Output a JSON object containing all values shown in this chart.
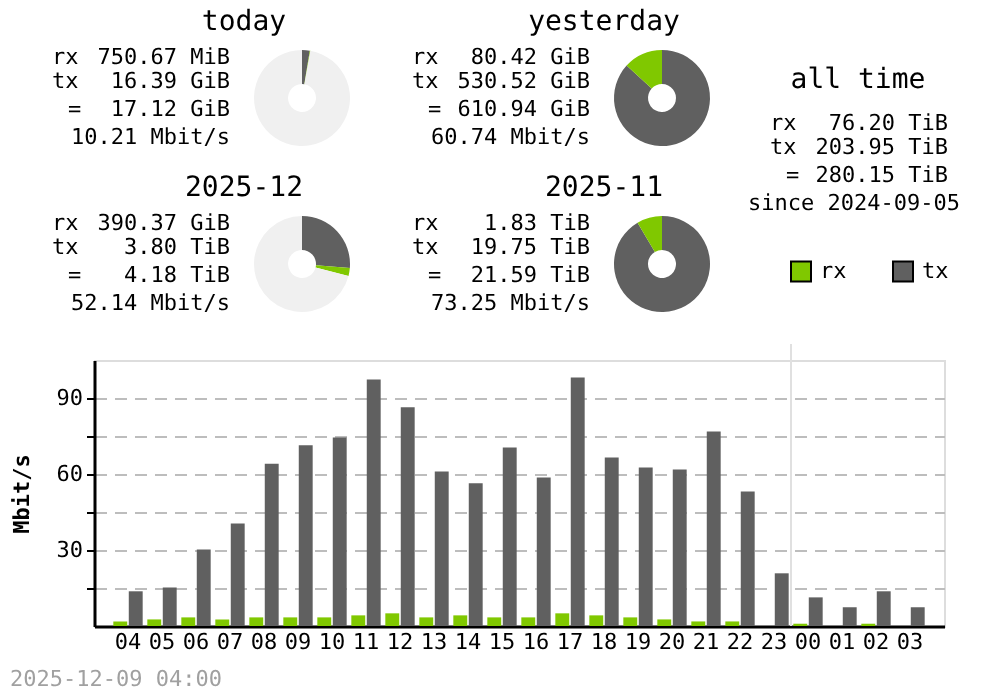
{
  "chart_data": [
    {
      "type": "donut",
      "title": "today",
      "categories": [
        null,
        null,
        null
      ],
      "values": [
        2.6,
        0.2,
        97.2
      ],
      "colors": [
        "#606060",
        "#80c800",
        "#f0f0f0"
      ],
      "annotations": [
        "rx 750.67 MiB",
        "tx 16.39 GiB",
        "= 17.12 GiB",
        "10.21 Mbit/s"
      ]
    },
    {
      "type": "donut",
      "title": "yesterday",
      "categories": [
        null,
        null,
        null
      ],
      "values": [
        86.8,
        13.2,
        0
      ],
      "colors": [
        "#606060",
        "#80c800",
        "#f0f0f0"
      ],
      "annotations": [
        "rx 80.42 GiB",
        "tx 530.52 GiB",
        "= 610.94 GiB",
        "60.74 Mbit/s"
      ]
    },
    {
      "type": "other",
      "title": "all time",
      "annotations": [
        "rx 76.20 TiB",
        "tx 203.95 TiB",
        "= 280.15 TiB",
        "since 2024-09-05"
      ]
    },
    {
      "type": "donut",
      "title": "2025-12",
      "categories": [
        null,
        null,
        null
      ],
      "values": [
        26.3,
        2.7,
        71
      ],
      "colors": [
        "#606060",
        "#80c800",
        "#f0f0f0"
      ],
      "annotations": [
        "rx 390.37 GiB",
        "tx 3.80 TiB",
        "= 4.18 TiB",
        "52.14 Mbit/s"
      ]
    },
    {
      "type": "donut",
      "title": "2025-11",
      "categories": [
        null,
        null,
        null
      ],
      "values": [
        91.5,
        8.5,
        0
      ],
      "colors": [
        "#606060",
        "#80c800",
        "#f0f0f0"
      ],
      "annotations": [
        "rx 1.83 TiB",
        "tx 19.75 TiB",
        "= 21.59 TiB",
        "73.25 Mbit/s"
      ]
    },
    {
      "type": "bar",
      "ylabel": "Mbit/s",
      "categories": [
        "04",
        "05",
        "06",
        "07",
        "08",
        "09",
        "10",
        "11",
        "12",
        "13",
        "14",
        "15",
        "16",
        "17",
        "18",
        "19",
        "20",
        "21",
        "22",
        "23",
        "00",
        "01",
        "02",
        "03"
      ],
      "series": [
        {
          "name": "rx",
          "color": "#80c800",
          "values": [
            1.8,
            2.6,
            3.4,
            2.6,
            3.4,
            3.4,
            3.4,
            4.2,
            5.0,
            3.4,
            4.2,
            3.4,
            3.4,
            5.0,
            4.2,
            3.4,
            2.6,
            1.8,
            1.8,
            0,
            0.9,
            0,
            0.9,
            0
          ]
        },
        {
          "name": "tx",
          "color": "#606060",
          "values": [
            13.7,
            15.2,
            30.2,
            40.5,
            64,
            71.3,
            74.4,
            97.3,
            86.3,
            61,
            56.3,
            70.5,
            58.6,
            98.1,
            66.5,
            62.6,
            61.8,
            76.8,
            53.1,
            20.8,
            11.3,
            7.4,
            13.7,
            7.4
          ]
        }
      ],
      "ylim": [
        0,
        105
      ],
      "yticks": [
        {
          "value": 15,
          "label": null
        },
        30,
        {
          "value": 45,
          "label": null
        },
        60,
        {
          "value": 75,
          "label": null
        },
        90
      ],
      "grid": "y",
      "legend": "top right",
      "ref_lines": [
        {
          "axis": "x",
          "value": "00",
          "label": null,
          "color": "#e0e0e0"
        }
      ],
      "annotations": [
        "2025-12-09 04:00"
      ]
    }
  ]
}
